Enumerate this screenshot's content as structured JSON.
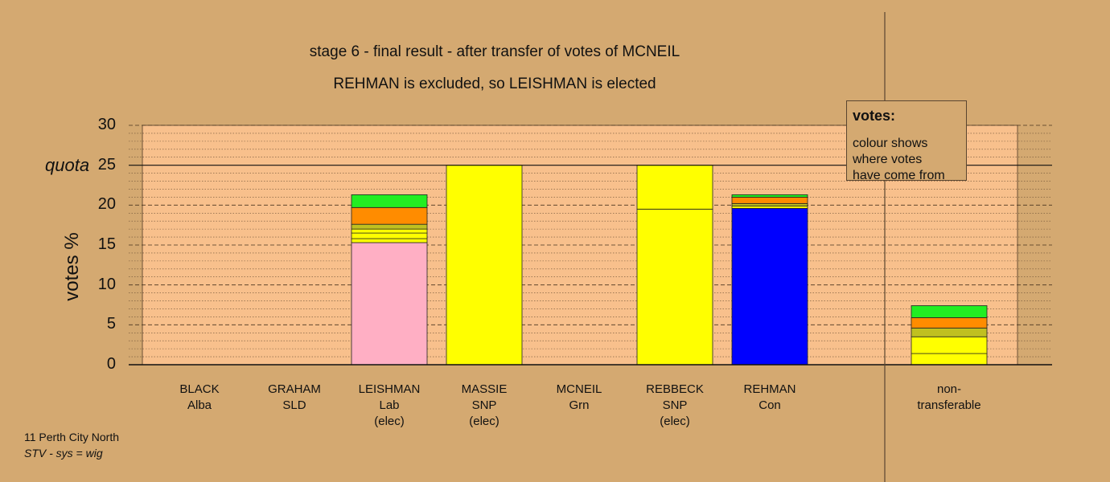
{
  "title_line1": "stage 6 - final result - after transfer of votes of MCNEIL",
  "title_line2": "REHMAN is excluded, so LEISHMAN is elected",
  "ylabel": "votes %",
  "quota_label": "quota",
  "legend": {
    "title": "votes:",
    "text": "colour shows\nwhere votes\nhave come from"
  },
  "footer": {
    "line1": "11 Perth City North",
    "line2": "STV - sys = wig"
  },
  "colors": {
    "background": "#d4a971",
    "plot_area": "#f8c08c",
    "yellow": "#ffff00",
    "pink": "#ffafc4",
    "olive": "#c0c020",
    "orange": "#ff8c00",
    "green": "#22ee22",
    "blue": "#0000ff"
  },
  "chart_data": {
    "type": "bar",
    "stacked": true,
    "ylabel": "votes %",
    "ylim": [
      0,
      30
    ],
    "yticks": [
      "0",
      "5",
      "10",
      "15",
      "20",
      "25",
      "30"
    ],
    "quota": 25,
    "grid": true,
    "categories": [
      {
        "name": "BLACK",
        "party": "Alba",
        "note": ""
      },
      {
        "name": "GRAHAM",
        "party": "SLD",
        "note": ""
      },
      {
        "name": "LEISHMAN",
        "party": "Lab",
        "note": "(elec)"
      },
      {
        "name": "MASSIE",
        "party": "SNP",
        "note": "(elec)"
      },
      {
        "name": "MCNEIL",
        "party": "Grn",
        "note": ""
      },
      {
        "name": "REBBECK",
        "party": "SNP",
        "note": "(elec)"
      },
      {
        "name": "REHMAN",
        "party": "Con",
        "note": ""
      },
      {
        "name": "non-",
        "party": "transferable",
        "note": ""
      }
    ],
    "stacks": [
      [],
      [],
      [
        {
          "value": 15.3,
          "color": "#ffafc4"
        },
        {
          "value": 0.5,
          "color": "#ffff00"
        },
        {
          "value": 0.7,
          "color": "#ffff00"
        },
        {
          "value": 0.5,
          "color": "#ffff00"
        },
        {
          "value": 0.6,
          "color": "#c0c020"
        },
        {
          "value": 2.1,
          "color": "#ff8c00"
        },
        {
          "value": 1.6,
          "color": "#22ee22"
        }
      ],
      [
        {
          "value": 25.0,
          "color": "#ffff00"
        }
      ],
      [],
      [
        {
          "value": 19.5,
          "color": "#ffff00"
        },
        {
          "value": 5.5,
          "color": "#ffff00"
        }
      ],
      [
        {
          "value": 19.6,
          "color": "#0000ff"
        },
        {
          "value": 0.3,
          "color": "#ffff00"
        },
        {
          "value": 0.3,
          "color": "#c0c020"
        },
        {
          "value": 0.8,
          "color": "#ff8c00"
        },
        {
          "value": 0.3,
          "color": "#22ee22"
        }
      ],
      [
        {
          "value": 1.4,
          "color": "#ffff00"
        },
        {
          "value": 2.1,
          "color": "#ffff00"
        },
        {
          "value": 1.1,
          "color": "#c0c020"
        },
        {
          "value": 1.3,
          "color": "#ff8c00"
        },
        {
          "value": 1.5,
          "color": "#22ee22"
        }
      ]
    ]
  }
}
